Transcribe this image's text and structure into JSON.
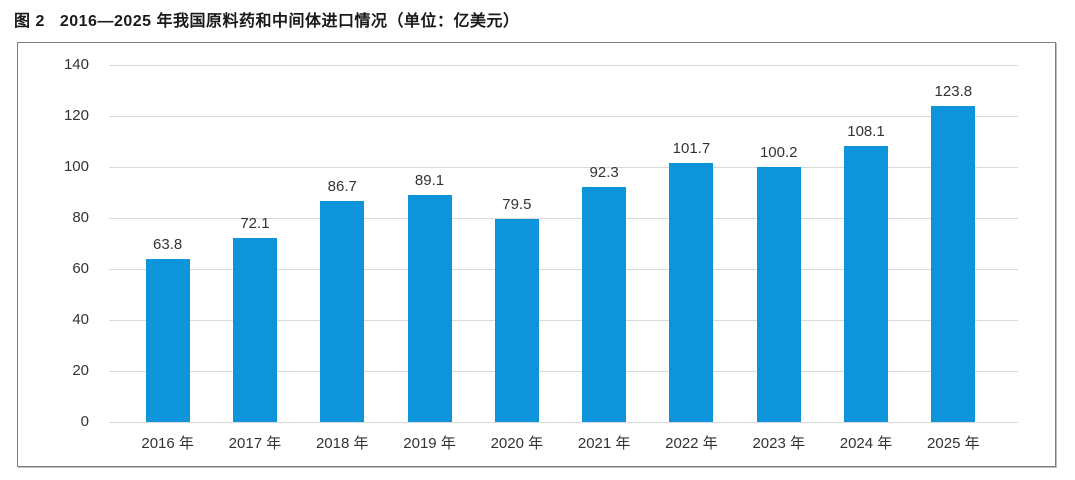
{
  "header": {
    "figure_label": "图 2",
    "title": "2016—2025 年我国原料药和中间体进口情况（单位：亿美元）"
  },
  "chart_data": {
    "type": "bar",
    "title": "2016—2025 年我国原料药和中间体进口情况",
    "unit_label": "亿美元",
    "categories": [
      "2016 年",
      "2017 年",
      "2018 年",
      "2019 年",
      "2020 年",
      "2021 年",
      "2022 年",
      "2023 年",
      "2024 年",
      "2025 年"
    ],
    "values": [
      63.8,
      72.1,
      86.7,
      89.1,
      79.5,
      92.3,
      101.7,
      100.2,
      108.1,
      123.8
    ],
    "value_labels": [
      "63.8",
      "72.1",
      "86.7",
      "89.1",
      "79.5",
      "92.3",
      "101.7",
      "100.2",
      "108.1",
      "123.8"
    ],
    "xlabel": "",
    "ylabel": "",
    "ylim": [
      0,
      140
    ],
    "yticks": [
      0,
      20,
      40,
      60,
      80,
      100,
      120,
      140
    ],
    "grid": true,
    "legend_position": "none",
    "bar_color": "#0e94db",
    "gridline_color": "#d9d9d9",
    "axis_text_color": "#333333",
    "frame_border_color": "#7e7e7e"
  }
}
